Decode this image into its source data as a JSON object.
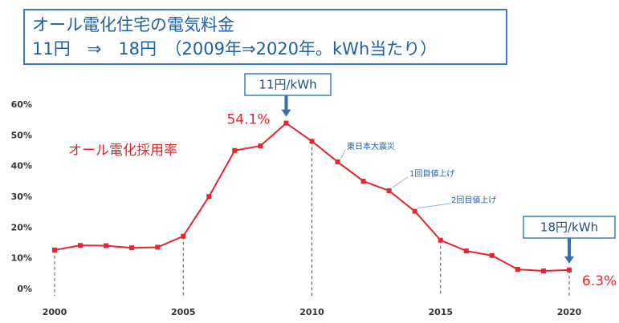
{
  "chart_data": {
    "type": "line",
    "title": [
      "オール電化住宅の電気料金",
      "11円　⇒　18円　（2009年⇒2020年。kWh当たり）"
    ],
    "x": [
      2000,
      2001,
      2002,
      2003,
      2004,
      2005,
      2006,
      2007,
      2008,
      2009,
      2010,
      2011,
      2012,
      2013,
      2014,
      2015,
      2016,
      2017,
      2018,
      2019,
      2020
    ],
    "series": [
      {
        "name": "オール電化採用率",
        "color": "#e8242c",
        "values": [
          12.8,
          14.3,
          14.2,
          13.5,
          13.7,
          17.3,
          30.2,
          45.2,
          46.7,
          54.1,
          48.2,
          41.5,
          35.2,
          32.1,
          25.4,
          16.0,
          12.5,
          11.0,
          6.5,
          6.0,
          6.3
        ],
        "value_labels": [
          null,
          null,
          null,
          null,
          null,
          null,
          null,
          null,
          null,
          "54.1%",
          null,
          null,
          null,
          null,
          null,
          null,
          null,
          null,
          null,
          null,
          "6.3%"
        ]
      }
    ],
    "xlim": [
      2000,
      2020
    ],
    "xticks": [
      2000,
      2005,
      2010,
      2015,
      2020
    ],
    "ylim": [
      0,
      60
    ],
    "yticks": [
      {
        "value": 0,
        "label": "0%"
      },
      {
        "value": 10,
        "label": "10%"
      },
      {
        "value": 20,
        "label": "20%"
      },
      {
        "value": 30,
        "label": "30%"
      },
      {
        "value": 40,
        "label": "40%"
      },
      {
        "value": 50,
        "label": "50%"
      },
      {
        "value": 60,
        "label": "60%"
      }
    ],
    "grid": false,
    "callouts": [
      {
        "text": "11円/kWh",
        "x": 2009
      },
      {
        "text": "18円/kWh",
        "x": 2020
      }
    ],
    "annotations": [
      {
        "text": "東日本大震災",
        "x": 2011
      },
      {
        "text": "1回目値上げ",
        "x": 2013
      },
      {
        "text": "2回目値上げ",
        "x": 2014
      }
    ]
  }
}
